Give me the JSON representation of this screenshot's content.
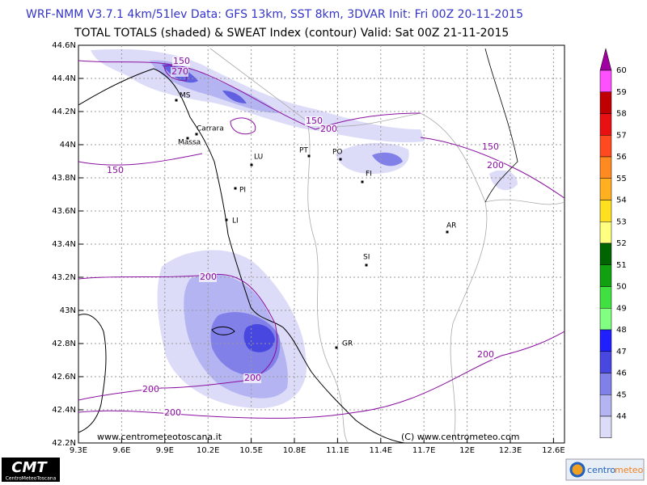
{
  "header": {
    "line1": "WRF-NMM V3.7.1 4km/51lev  Data: GFS 13km, SST 8km, 3DVAR  Init: Fri 00Z 20-11-2015",
    "line2": "TOTAL TOTALS (shaded) & SWEAT Index (contour)  Valid: Sat 00Z 21-11-2015"
  },
  "map": {
    "lat_labels": [
      "44.6N",
      "44.4N",
      "44.2N",
      "44N",
      "43.8N",
      "43.6N",
      "43.4N",
      "43.2N",
      "43N",
      "42.8N",
      "42.6N",
      "42.4N",
      "42.2N"
    ],
    "lon_labels": [
      "9.3E",
      "9.6E",
      "9.9E",
      "10.2E",
      "10.5E",
      "10.8E",
      "11.1E",
      "11.4E",
      "11.7E",
      "12E",
      "12.3E",
      "12.6E"
    ],
    "cities": [
      "MS",
      "Carrara",
      "Massa",
      "LU",
      "PT",
      "PO",
      "FI",
      "PI",
      "LI",
      "AR",
      "SI",
      "GR"
    ],
    "contour_labels": [
      "150",
      "270",
      "150",
      "200",
      "150",
      "200",
      "150",
      "200",
      "200",
      "200",
      "200",
      "200"
    ],
    "watermarks": [
      "www.centrometeotoscana.it",
      "(C) www.centrometeo.com"
    ]
  },
  "colorbar": {
    "labels": [
      "60",
      "59",
      "58",
      "57",
      "56",
      "55",
      "54",
      "53",
      "52",
      "51",
      "50",
      "49",
      "48",
      "47",
      "46",
      "45",
      "44"
    ],
    "colors": [
      "#a000a0",
      "#ff50ff",
      "#c00000",
      "#e81010",
      "#ff4a20",
      "#ff8a20",
      "#ffb020",
      "#ffe020",
      "#ffff80",
      "#006400",
      "#10a010",
      "#40e040",
      "#80ff80",
      "#2020ff",
      "#4848e0",
      "#8080e8",
      "#b4b4f2",
      "#dcdcf8"
    ]
  },
  "footer": {
    "logo_left": "CMT",
    "logo_left_sub": "CentroMeteoToscana",
    "logo_right_a": "centro",
    "logo_right_b": "meteo"
  }
}
